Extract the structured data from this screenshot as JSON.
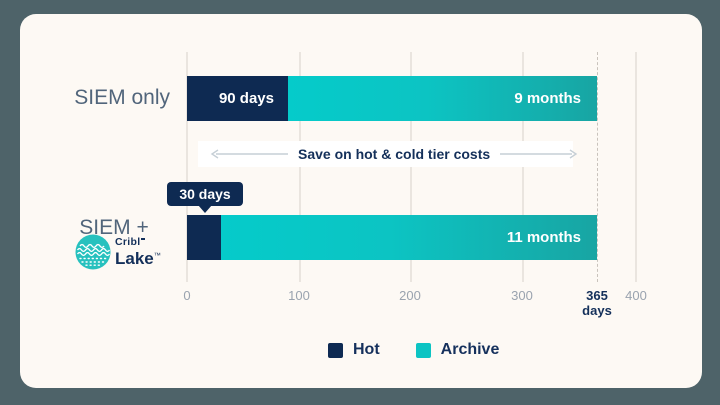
{
  "colors": {
    "page_bg": "#4e6369",
    "card_bg": "#fdf9f4",
    "hot_navy": "#0e2a52",
    "archive_teal_start": "#05cbca",
    "archive_teal_end": "#18a5a3",
    "logo_teal": "#27c1be",
    "row_label_slate": "#51657b",
    "tick_gray": "#9aa3af",
    "accent_navy_text": "#14305a"
  },
  "rows": [
    {
      "label": "SIEM only",
      "hot": {
        "label": "90 days"
      },
      "archive": {
        "label": "9 months"
      }
    },
    {
      "label": "SIEM +",
      "hot": {
        "label": ""
      },
      "archive": {
        "label": "11 months"
      }
    }
  ],
  "banner": {
    "label": "Save on hot & cold tier costs"
  },
  "tooltip": {
    "label": "30 days"
  },
  "logo": {
    "brand": "Cribl",
    "product": "Lake",
    "trademark": "™"
  },
  "axis": {
    "ticks": [
      {
        "label": "0"
      },
      {
        "label": "100"
      },
      {
        "label": "200"
      },
      {
        "label": "300"
      },
      {
        "label": "365"
      },
      {
        "label": "400"
      }
    ],
    "unit_label": "days"
  },
  "legend": {
    "items": [
      {
        "label": "Hot",
        "color": "#0e2a52"
      },
      {
        "label": "Archive",
        "color": "#0cc4c3"
      }
    ]
  },
  "chart_data": {
    "type": "bar",
    "orientation": "horizontal",
    "stacked": true,
    "title": "",
    "categories": [
      "SIEM only",
      "SIEM + Cribl Lake"
    ],
    "series": [
      {
        "name": "Hot",
        "color": "#0e2a52",
        "values_days": [
          90,
          30
        ],
        "bar_labels": [
          "90 days",
          "30 days"
        ]
      },
      {
        "name": "Archive",
        "color": "#0cc4c3",
        "values_days": [
          275,
          335
        ],
        "bar_labels": [
          "9 months",
          "11 months"
        ]
      }
    ],
    "x_axis": {
      "ticks": [
        0,
        100,
        200,
        300,
        365,
        400
      ],
      "unit": "days",
      "range": [
        0,
        400
      ],
      "dashed_marker_at": 365,
      "highlight_tick": 365
    },
    "annotation": "Save on hot & cold tier costs",
    "callout": "30 days",
    "legend_entries": [
      "Hot",
      "Archive"
    ],
    "legend_position": "bottom",
    "grid": "vertical"
  }
}
